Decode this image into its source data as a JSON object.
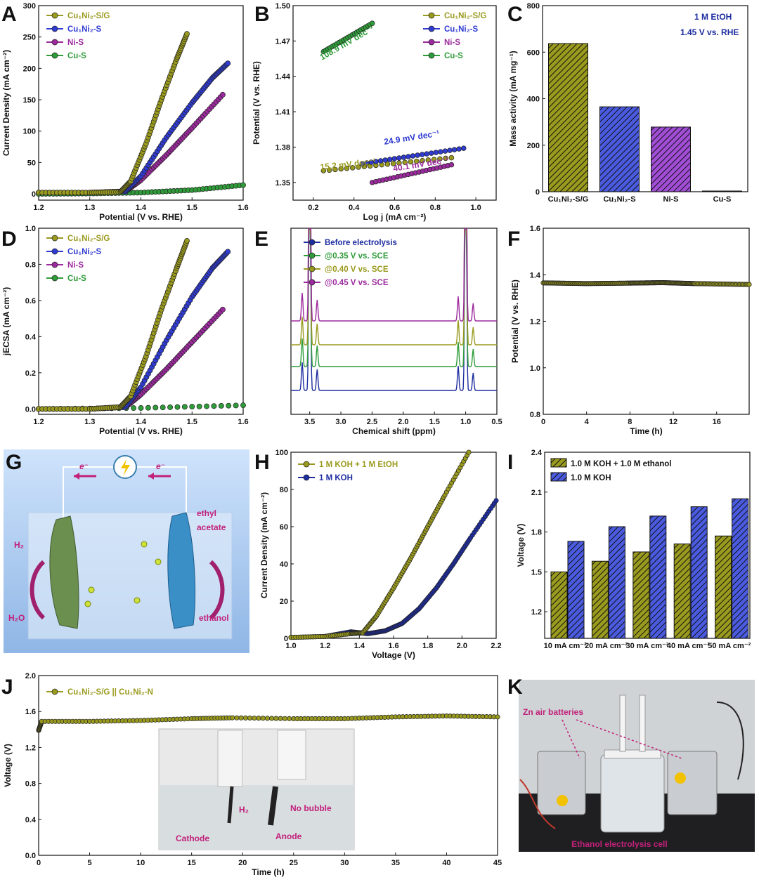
{
  "colors": {
    "olive": "#9a9a1f",
    "blue": "#2f3bd1",
    "purple": "#9c2a9e",
    "green": "#2f9c3a",
    "navy": "#1e2da0",
    "magenta": "#c2207a"
  },
  "chart_data": [
    {
      "panel": "A",
      "type": "line",
      "xlabel": "Potential (V vs. RHE)",
      "ylabel": "Current Density (mA cm⁻²)",
      "xlim": [
        1.2,
        1.6
      ],
      "ylim": [
        -10,
        300
      ],
      "xticks": [
        "1.2",
        "1.3",
        "1.4",
        "1.5",
        "1.6"
      ],
      "xtickvals": [
        1.2,
        1.3,
        1.4,
        1.5,
        1.6
      ],
      "yticks": [
        "0",
        "50",
        "100",
        "150",
        "200",
        "250",
        "300"
      ],
      "ytickvals": [
        0,
        50,
        100,
        150,
        200,
        250,
        300
      ],
      "legend": [
        "Cu₁Ni₂-S/G",
        "Cu₁Ni₂-S",
        "Ni-S",
        "Cu-S"
      ],
      "series": [
        {
          "name": "Cu₁Ni₂-S/G",
          "color": "olive",
          "x": [
            1.2,
            1.3,
            1.36,
            1.38,
            1.41,
            1.44,
            1.47,
            1.49
          ],
          "y": [
            2,
            2,
            3,
            20,
            80,
            150,
            215,
            255
          ]
        },
        {
          "name": "Cu₁Ni₂-S",
          "color": "blue",
          "x": [
            1.2,
            1.3,
            1.37,
            1.4,
            1.45,
            1.5,
            1.54,
            1.57
          ],
          "y": [
            2,
            2,
            4,
            28,
            90,
            145,
            185,
            208
          ]
        },
        {
          "name": "Ni-S",
          "color": "purple",
          "x": [
            1.2,
            1.3,
            1.37,
            1.4,
            1.45,
            1.5,
            1.56
          ],
          "y": [
            2,
            2,
            4,
            22,
            62,
            105,
            158
          ]
        },
        {
          "name": "Cu-S",
          "color": "green",
          "x": [
            1.2,
            1.3,
            1.4,
            1.5,
            1.6
          ],
          "y": [
            0,
            0.5,
            2,
            6,
            14
          ]
        }
      ]
    },
    {
      "panel": "B",
      "type": "line",
      "xlabel": "Log j (mA cm⁻²)",
      "ylabel": "Potential (V vs. RHE)",
      "xlim": [
        0.1,
        1.1
      ],
      "ylim": [
        1.335,
        1.5
      ],
      "xticks": [
        "0.2",
        "0.4",
        "0.6",
        "0.8",
        "1.0"
      ],
      "xtickvals": [
        0.2,
        0.4,
        0.6,
        0.8,
        1.0
      ],
      "yticks": [
        "1.35",
        "1.38",
        "1.41",
        "1.44",
        "1.47",
        "1.50"
      ],
      "ytickvals": [
        1.35,
        1.38,
        1.41,
        1.44,
        1.47,
        1.5
      ],
      "legend": [
        "Cu₁Ni₂-S/G",
        "Cu₁Ni₂-S",
        "Ni-S",
        "Cu-S"
      ],
      "series": [
        {
          "name": "Cu₁Ni₂-S/G",
          "color": "olive",
          "x": [
            0.25,
            0.88
          ],
          "y": [
            1.36,
            1.371
          ]
        },
        {
          "name": "Cu₁Ni₂-S",
          "color": "blue",
          "x": [
            0.44,
            0.94
          ],
          "y": [
            1.366,
            1.379
          ]
        },
        {
          "name": "Ni-S",
          "color": "purple",
          "x": [
            0.49,
            0.88
          ],
          "y": [
            1.35,
            1.365
          ]
        },
        {
          "name": "Cu-S",
          "color": "green",
          "x": [
            0.25,
            0.49
          ],
          "y": [
            1.461,
            1.485
          ]
        }
      ],
      "annotations": [
        {
          "text": "108.9 mV dec⁻¹",
          "color": "green"
        },
        {
          "text": "24.9 mV dec⁻¹",
          "color": "blue"
        },
        {
          "text": "15.2 mV dec⁻¹",
          "color": "olive"
        },
        {
          "text": "40.1 mV dec⁻¹",
          "color": "purple"
        }
      ]
    },
    {
      "panel": "C",
      "type": "bar",
      "ylabel": "Mass activity (mA mg⁻¹)",
      "ylim": [
        0,
        800
      ],
      "categories": [
        "Cu₁Ni₂-S/G",
        "Cu₁Ni₂-S",
        "Ni-S",
        "Cu-S"
      ],
      "values": [
        637,
        365,
        278,
        3
      ],
      "bar_colors": [
        "olive",
        "blue",
        "purple",
        "green"
      ],
      "yticks": [
        "0",
        "200",
        "400",
        "600",
        "800"
      ],
      "ytickvals": [
        0,
        200,
        400,
        600,
        800
      ],
      "notes": [
        "1 M EtOH",
        "1.45 V vs. RHE"
      ]
    },
    {
      "panel": "D",
      "type": "line",
      "xlabel": "Potential (V vs. RHE)",
      "ylabel": "jECSA (mA cm⁻²)",
      "xlim": [
        1.2,
        1.6
      ],
      "ylim": [
        -0.03,
        1.0
      ],
      "xticks": [
        "1.2",
        "1.3",
        "1.4",
        "1.5",
        "1.6"
      ],
      "xtickvals": [
        1.2,
        1.3,
        1.4,
        1.5,
        1.6
      ],
      "yticks": [
        "0.0",
        "0.2",
        "0.4",
        "0.6",
        "0.8",
        "1.0"
      ],
      "ytickvals": [
        0,
        0.2,
        0.4,
        0.6,
        0.8,
        1.0
      ],
      "legend": [
        "Cu₁Ni₂-S/G",
        "Cu₁Ni₂-S",
        "Ni-S",
        "Cu-S"
      ],
      "series": [
        {
          "name": "Cu₁Ni₂-S/G",
          "color": "olive",
          "x": [
            1.2,
            1.3,
            1.36,
            1.38,
            1.41,
            1.44,
            1.47,
            1.49
          ],
          "y": [
            0,
            0,
            0.01,
            0.07,
            0.29,
            0.55,
            0.78,
            0.93
          ]
        },
        {
          "name": "Cu₁Ni₂-S",
          "color": "blue",
          "x": [
            1.2,
            1.3,
            1.37,
            1.4,
            1.45,
            1.5,
            1.54,
            1.57
          ],
          "y": [
            0,
            0,
            0.01,
            0.12,
            0.38,
            0.62,
            0.78,
            0.87
          ]
        },
        {
          "name": "Ni-S",
          "color": "purple",
          "x": [
            1.2,
            1.3,
            1.37,
            1.4,
            1.45,
            1.5,
            1.56
          ],
          "y": [
            0,
            0,
            0.01,
            0.08,
            0.22,
            0.37,
            0.55
          ]
        },
        {
          "name": "Cu-S",
          "color": "green",
          "x": [
            1.2,
            1.4,
            1.6
          ],
          "y": [
            0,
            0.005,
            0.02
          ]
        }
      ]
    },
    {
      "panel": "E",
      "type": "line",
      "xlabel": "Chemical shift (ppm)",
      "xlim": [
        3.8,
        0.5
      ],
      "xticks": [
        "3.5",
        "3.0",
        "2.5",
        "2.0",
        "1.5",
        "1.0",
        "0.5"
      ],
      "xtickvals": [
        3.5,
        3.0,
        2.5,
        2.0,
        1.5,
        1.0,
        0.5
      ],
      "legend": [
        "Before electrolysis",
        "@0.35 V vs. SCE",
        "@0.40 V vs. SCE",
        "@0.45 V vs. SCE"
      ],
      "series_colors": [
        "navy",
        "green",
        "olive",
        "purple"
      ],
      "peaks_ppm": [
        3.62,
        3.5,
        3.38,
        1.12,
        1.0,
        0.88
      ]
    },
    {
      "panel": "F",
      "type": "line",
      "xlabel": "Time (h)",
      "ylabel": "Potential (V vs. RHE)",
      "xlim": [
        0,
        19
      ],
      "ylim": [
        0.8,
        1.6
      ],
      "xticks": [
        "0",
        "4",
        "8",
        "12",
        "16"
      ],
      "xtickvals": [
        0,
        4,
        8,
        12,
        16
      ],
      "yticks": [
        "0.8",
        "1.0",
        "1.2",
        "1.4",
        "1.6"
      ],
      "ytickvals": [
        0.8,
        1.0,
        1.2,
        1.4,
        1.6
      ],
      "series": [
        {
          "color": "olive",
          "x": [
            0,
            4,
            8,
            11,
            14,
            19
          ],
          "y": [
            1.365,
            1.362,
            1.364,
            1.366,
            1.362,
            1.358
          ]
        }
      ]
    },
    {
      "panel": "H",
      "type": "line",
      "xlabel": "Voltage (V)",
      "ylabel": "Current Density (mA cm⁻²)",
      "xlim": [
        1.0,
        2.2
      ],
      "ylim": [
        0,
        100
      ],
      "xticks": [
        "1.0",
        "1.2",
        "1.4",
        "1.6",
        "1.8",
        "2.0",
        "2.2"
      ],
      "xtickvals": [
        1.0,
        1.2,
        1.4,
        1.6,
        1.8,
        2.0,
        2.2
      ],
      "yticks": [
        "0",
        "20",
        "40",
        "60",
        "80",
        "100"
      ],
      "ytickvals": [
        0,
        20,
        40,
        60,
        80,
        100
      ],
      "legend": [
        "1 M KOH + 1 M EtOH",
        "1 M KOH"
      ],
      "series": [
        {
          "name": "1 M KOH + 1 M EtOH",
          "color": "olive",
          "x": [
            1.0,
            1.2,
            1.35,
            1.42,
            1.5,
            1.6,
            1.7,
            1.8,
            1.9,
            2.04
          ],
          "y": [
            0.5,
            1,
            2.5,
            3,
            12,
            27,
            43,
            60,
            77,
            100
          ]
        },
        {
          "name": "1 M KOH",
          "color": "navy",
          "x": [
            1.0,
            1.2,
            1.35,
            1.45,
            1.55,
            1.65,
            1.75,
            1.85,
            1.95,
            2.05,
            2.2
          ],
          "y": [
            0.5,
            1,
            3.5,
            2.5,
            4,
            8,
            16,
            27,
            40,
            54,
            74
          ]
        }
      ]
    },
    {
      "panel": "I",
      "type": "bar",
      "ylabel": "Voltage (V)",
      "ylim": [
        1.0,
        2.4
      ],
      "categories": [
        "10 mA cm⁻²",
        "20 mA cm⁻²",
        "30 mA cm⁻²",
        "40 mA cm⁻²",
        "50 mA cm⁻²"
      ],
      "yticks": [
        "1.2",
        "1.5",
        "1.8",
        "2.1",
        "2.4"
      ],
      "ytickvals": [
        1.2,
        1.5,
        1.8,
        2.1,
        2.4
      ],
      "series": [
        {
          "name": "1.0 M KOH + 1.0 M ethanol",
          "color": "olive",
          "values": [
            1.5,
            1.58,
            1.65,
            1.71,
            1.77
          ]
        },
        {
          "name": "1.0 M KOH",
          "color": "blue",
          "values": [
            1.73,
            1.84,
            1.92,
            1.99,
            2.05
          ]
        }
      ]
    },
    {
      "panel": "J",
      "type": "line",
      "xlabel": "Time (h)",
      "ylabel": "Voltage (V)",
      "xlim": [
        0,
        45
      ],
      "ylim": [
        0,
        2.0
      ],
      "xticks": [
        "0",
        "5",
        "10",
        "15",
        "20",
        "25",
        "30",
        "35",
        "40",
        "45"
      ],
      "xtickvals": [
        0,
        5,
        10,
        15,
        20,
        25,
        30,
        35,
        40,
        45
      ],
      "yticks": [
        "0.0",
        "0.4",
        "0.8",
        "1.2",
        "1.6",
        "2.0"
      ],
      "ytickvals": [
        0,
        0.4,
        0.8,
        1.2,
        1.6,
        2.0
      ],
      "legend": [
        "Cu₁Ni₂-S/G || Cu₁Ni₂-N"
      ],
      "series": [
        {
          "color": "olive",
          "x": [
            0,
            0.3,
            5,
            10,
            15,
            19,
            25,
            30,
            35,
            40,
            45
          ],
          "y": [
            1.39,
            1.49,
            1.49,
            1.5,
            1.52,
            1.53,
            1.52,
            1.52,
            1.54,
            1.55,
            1.54
          ]
        }
      ]
    }
  ],
  "panels": {
    "G": {
      "electron_left": "e⁻",
      "electron_right": "e⁻",
      "h2": "H₂",
      "h2o": "H₂O",
      "ethyl_line1": "ethyl",
      "ethyl_line2": "acetate",
      "ethanol": "ethanol"
    },
    "J": {
      "cathode": "Cathode",
      "anode": "Anode",
      "h2": "H₂",
      "no_bubble": "No bubble"
    },
    "K": {
      "zn": "Zn air batteries",
      "cell": "Ethanol electrolysis cell"
    }
  },
  "labels": [
    "A",
    "B",
    "C",
    "D",
    "E",
    "F",
    "G",
    "H",
    "I",
    "J",
    "K"
  ]
}
